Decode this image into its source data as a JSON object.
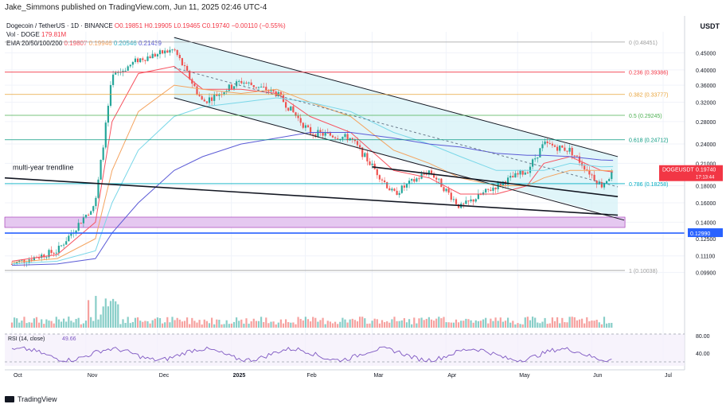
{
  "header": {
    "published": "Jake_Simmons published on TradingView.com, Jun 11, 2025 02:46 UTC-4",
    "currency": "USDT"
  },
  "legend": {
    "symbol": "Dogecoin / TetherUS · 1D · BINANCE",
    "ohlc": "O0.19851 H0.19905 L0.19465 C0.19740 −0.00110 (−0.55%)",
    "vol": "Vol · DOGE",
    "vol_value": "179.81M",
    "ema": "EMA 20/50/100/200",
    "ema_values": [
      "0.19807",
      "0.19946",
      "0.20546",
      "0.21439"
    ]
  },
  "footer": {
    "brand": "TradingView"
  },
  "colors": {
    "up": "#26a69a",
    "down": "#ef5350",
    "ema20": "#f7525f",
    "ema50": "#f4a460",
    "ema100": "#7ad7e8",
    "ema200": "#5b5bd6",
    "channel_fill": "#d6f1f7",
    "support_zone": "#e5c8f0",
    "support_line": "#2962ff"
  },
  "annotations": {
    "trendline": "multi-year trendline",
    "price_tag": "DOGEUSDT",
    "price_value": "0.19740",
    "countdown": "17:13:44",
    "support_value": "0.12990",
    "rsi_label": "RSI (14, close)",
    "rsi_value": "49.66"
  },
  "fib_levels": [
    {
      "label": "0 (0.48451)",
      "price": 0.48451,
      "color": "#9e9e9e"
    },
    {
      "label": "0.236 (0.39386)",
      "price": 0.39386,
      "color": "#f23645"
    },
    {
      "label": "0.382 (0.33777)",
      "price": 0.33777,
      "color": "#e8a33a"
    },
    {
      "label": "0.5 (0.29245)",
      "price": 0.29245,
      "color": "#4caf50"
    },
    {
      "label": "0.618 (0.24712)",
      "price": 0.24712,
      "color": "#089981"
    },
    {
      "label": "0.786 (0.18258)",
      "price": 0.18258,
      "color": "#00acc1"
    },
    {
      "label": "1 (0.10038)",
      "price": 0.10038,
      "color": "#9e9e9e"
    }
  ],
  "chart_data": {
    "type": "line",
    "title": "Dogecoin / TetherUS · 1D · BINANCE",
    "x": [
      "2024-10-01",
      "2024-10-20",
      "2024-11-05",
      "2024-11-12",
      "2024-11-23",
      "2024-12-08",
      "2024-12-20",
      "2025-01-05",
      "2025-01-20",
      "2025-02-03",
      "2025-02-20",
      "2025-03-10",
      "2025-03-25",
      "2025-04-07",
      "2025-04-22",
      "2025-05-05",
      "2025-05-12",
      "2025-05-23",
      "2025-06-05",
      "2025-06-10"
    ],
    "x_ticks": [
      "Oct",
      "Nov",
      "Dec",
      "2025",
      "Feb",
      "Mar",
      "Apr",
      "May",
      "Jun",
      "Jul"
    ],
    "y_ticks": [
      "0.45000",
      "0.40000",
      "0.36000",
      "0.32000",
      "0.28000",
      "0.24000",
      "0.21000",
      "0.18000",
      "0.16000",
      "0.14000",
      "0.12500",
      "0.11100",
      "0.09900"
    ],
    "ylim": [
      0.09,
      0.52
    ],
    "log_scale": true,
    "series": [
      {
        "name": "DOGEUSDT",
        "values": [
          0.105,
          0.115,
          0.16,
          0.38,
          0.43,
          0.46,
          0.32,
          0.37,
          0.34,
          0.26,
          0.25,
          0.17,
          0.2,
          0.155,
          0.18,
          0.2,
          0.24,
          0.23,
          0.18,
          0.1974
        ]
      },
      {
        "name": "EMA 20",
        "values": [
          0.107,
          0.112,
          0.14,
          0.28,
          0.39,
          0.41,
          0.35,
          0.35,
          0.34,
          0.29,
          0.26,
          0.2,
          0.19,
          0.17,
          0.17,
          0.18,
          0.21,
          0.22,
          0.2,
          0.198
        ]
      },
      {
        "name": "EMA 50",
        "values": [
          0.106,
          0.109,
          0.125,
          0.2,
          0.3,
          0.36,
          0.35,
          0.34,
          0.35,
          0.32,
          0.29,
          0.23,
          0.21,
          0.19,
          0.18,
          0.18,
          0.19,
          0.2,
          0.2,
          0.1995
        ]
      },
      {
        "name": "EMA 100",
        "values": [
          0.105,
          0.107,
          0.115,
          0.16,
          0.23,
          0.29,
          0.31,
          0.32,
          0.33,
          0.32,
          0.3,
          0.26,
          0.24,
          0.22,
          0.2,
          0.2,
          0.2,
          0.21,
          0.205,
          0.2055
        ]
      },
      {
        "name": "EMA 200",
        "values": [
          0.104,
          0.105,
          0.109,
          0.13,
          0.16,
          0.2,
          0.22,
          0.24,
          0.25,
          0.26,
          0.26,
          0.25,
          0.24,
          0.235,
          0.225,
          0.222,
          0.222,
          0.22,
          0.215,
          0.2144
        ]
      }
    ],
    "rsi": {
      "label": "RSI (14, close)",
      "y_ticks": [
        "80.00",
        "40.00"
      ]
    },
    "grid": true,
    "legend_position": "top-left"
  }
}
